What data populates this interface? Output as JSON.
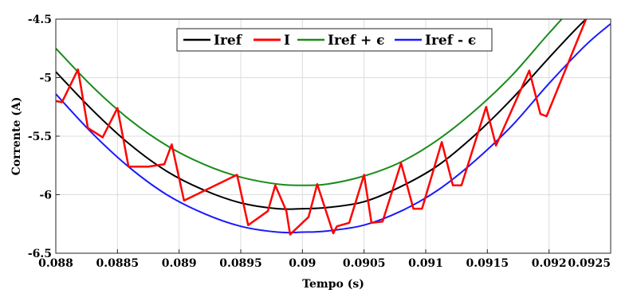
{
  "chart_data": {
    "type": "line",
    "title": "",
    "xlabel": "Tempo (s)",
    "ylabel": "Corrente (A)",
    "xlim": [
      0.088,
      0.0925
    ],
    "ylim": [
      -6.5,
      -4.5
    ],
    "xticks": [
      "0.088",
      "0.0885",
      "0.089",
      "0.0895",
      "0.09",
      "0.0905",
      "0.091",
      "0.0915",
      "0.092",
      "0.0925"
    ],
    "yticks": [
      "-6.5",
      "-6",
      "-5.5",
      "-5",
      "-4.5"
    ],
    "grid": true,
    "legend_position": "top-center",
    "series": [
      {
        "name": "Iref",
        "color": "#000000",
        "x": [
          0.088,
          0.0883,
          0.0886,
          0.0889,
          0.0892,
          0.0895,
          0.0898,
          0.09,
          0.0902,
          0.0905,
          0.0908,
          0.0911,
          0.0914,
          0.0917,
          0.092,
          0.0923,
          0.0925
        ],
        "y": [
          -4.95,
          -5.28,
          -5.57,
          -5.8,
          -5.96,
          -6.07,
          -6.12,
          -6.12,
          -6.11,
          -6.06,
          -5.93,
          -5.75,
          -5.49,
          -5.18,
          -4.83,
          -4.5,
          -4.35
        ]
      },
      {
        "name": "I",
        "color": "#ff0000",
        "x": [
          0.088,
          0.08805,
          0.08818,
          0.08826,
          0.08838,
          0.0885,
          0.08859,
          0.08875,
          0.08888,
          0.08894,
          0.08904,
          0.08947,
          0.08956,
          0.08972,
          0.08978,
          0.08987,
          0.0899,
          0.09005,
          0.09012,
          0.09025,
          0.09028,
          0.09038,
          0.0905,
          0.09056,
          0.09065,
          0.0908,
          0.0909,
          0.09097,
          0.09113,
          0.09122,
          0.09129,
          0.09149,
          0.09157,
          0.09184,
          0.09193,
          0.09198,
          0.0923,
          0.09245
        ],
        "y": [
          -5.2,
          -5.21,
          -4.93,
          -5.43,
          -5.51,
          -5.26,
          -5.76,
          -5.76,
          -5.74,
          -5.57,
          -6.05,
          -5.83,
          -6.26,
          -6.14,
          -5.92,
          -6.14,
          -6.34,
          -6.19,
          -5.91,
          -6.33,
          -6.27,
          -6.24,
          -5.83,
          -6.24,
          -6.23,
          -5.73,
          -6.12,
          -6.12,
          -5.55,
          -5.92,
          -5.92,
          -5.25,
          -5.58,
          -4.94,
          -5.31,
          -5.33,
          -4.5,
          -4.3
        ]
      },
      {
        "name": "Iref + ϵ",
        "color": "#1a8c1a",
        "x": [
          0.088,
          0.0883,
          0.0886,
          0.0889,
          0.0892,
          0.0895,
          0.0898,
          0.09,
          0.0902,
          0.0905,
          0.0908,
          0.0911,
          0.0914,
          0.0917,
          0.092,
          0.0922,
          0.0925
        ],
        "y": [
          -4.75,
          -5.08,
          -5.36,
          -5.58,
          -5.74,
          -5.85,
          -5.91,
          -5.92,
          -5.91,
          -5.84,
          -5.72,
          -5.53,
          -5.28,
          -4.98,
          -4.62,
          -4.4,
          -4.15
        ]
      },
      {
        "name": "Iref - ϵ",
        "color": "#1a1aff",
        "x": [
          0.088,
          0.0883,
          0.0886,
          0.0889,
          0.0892,
          0.0895,
          0.0898,
          0.09,
          0.0902,
          0.0905,
          0.0908,
          0.0911,
          0.0914,
          0.0917,
          0.092,
          0.0923,
          0.0925
        ],
        "y": [
          -5.14,
          -5.48,
          -5.77,
          -6.0,
          -6.16,
          -6.27,
          -6.32,
          -6.32,
          -6.31,
          -6.26,
          -6.14,
          -5.96,
          -5.71,
          -5.41,
          -5.05,
          -4.72,
          -4.54
        ]
      }
    ]
  }
}
